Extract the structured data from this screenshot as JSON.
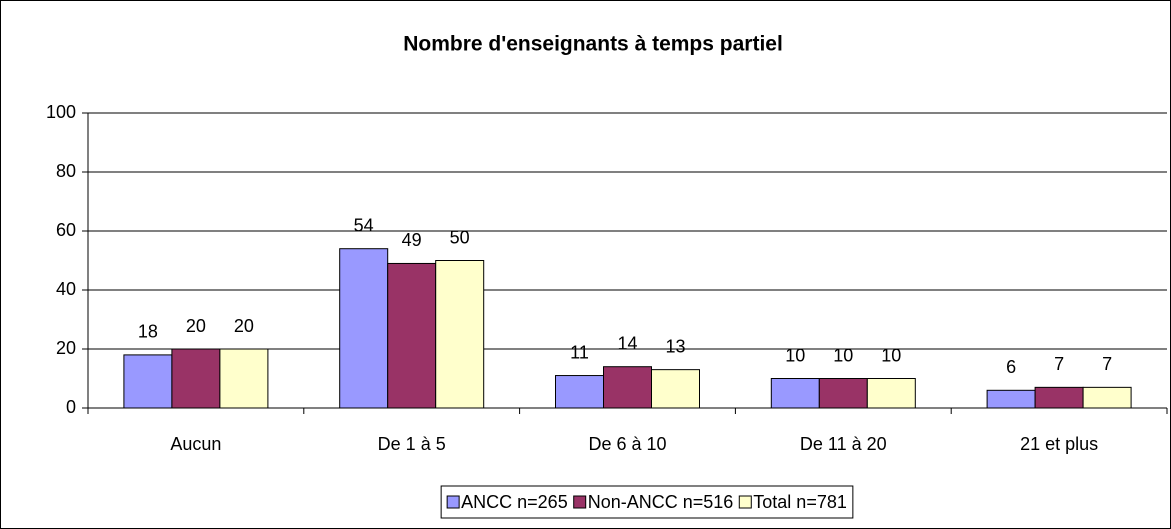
{
  "chart_data": {
    "type": "bar",
    "title": "Nombre d'enseignants à temps partiel",
    "categories": [
      "Aucun",
      "De 1 à 5",
      "De 6 à 10",
      "De 11 à 20",
      "21 et plus"
    ],
    "series": [
      {
        "name": "ANCC n=265",
        "color": "#9999ff",
        "values": [
          18,
          54,
          11,
          10,
          6
        ]
      },
      {
        "name": "Non-ANCC n=516",
        "color": "#993366",
        "values": [
          20,
          49,
          14,
          10,
          7
        ]
      },
      {
        "name": "Total n=781",
        "color": "#ffffcc",
        "values": [
          20,
          50,
          13,
          10,
          7
        ]
      }
    ],
    "ylim": [
      0,
      100
    ],
    "yticks": [
      0,
      20,
      40,
      60,
      80,
      100
    ],
    "grid": true,
    "legend": "bottom"
  }
}
